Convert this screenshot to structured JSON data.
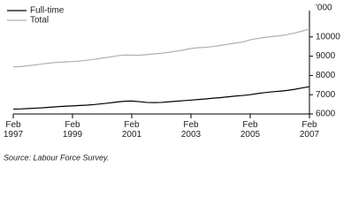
{
  "chart_data": {
    "type": "line",
    "unit_label": "'000",
    "source": "Source: Labour Force Survey.",
    "x": [
      "1997-02",
      "1997-05",
      "1997-08",
      "1997-11",
      "1998-02",
      "1998-05",
      "1998-08",
      "1998-11",
      "1999-02",
      "1999-05",
      "1999-08",
      "1999-11",
      "2000-02",
      "2000-05",
      "2000-08",
      "2000-11",
      "2001-02",
      "2001-05",
      "2001-08",
      "2001-11",
      "2002-02",
      "2002-05",
      "2002-08",
      "2002-11",
      "2003-02",
      "2003-05",
      "2003-08",
      "2003-11",
      "2004-02",
      "2004-05",
      "2004-08",
      "2004-11",
      "2005-02",
      "2005-05",
      "2005-08",
      "2005-11",
      "2006-02",
      "2006-05",
      "2006-08",
      "2006-11",
      "2007-02"
    ],
    "series": [
      {
        "name": "Full-time",
        "color": "#000000",
        "values": [
          6250,
          6260,
          6280,
          6300,
          6320,
          6350,
          6380,
          6400,
          6420,
          6440,
          6460,
          6490,
          6530,
          6570,
          6620,
          6660,
          6670,
          6640,
          6600,
          6590,
          6600,
          6630,
          6660,
          6690,
          6720,
          6750,
          6780,
          6820,
          6850,
          6890,
          6930,
          6960,
          7000,
          7060,
          7110,
          7150,
          7180,
          7220,
          7280,
          7350,
          7420
        ]
      },
      {
        "name": "Total",
        "color": "#b0b0b0",
        "values": [
          8450,
          8460,
          8500,
          8550,
          8600,
          8650,
          8680,
          8700,
          8720,
          8750,
          8790,
          8840,
          8900,
          8950,
          9020,
          9060,
          9050,
          9050,
          9080,
          9120,
          9150,
          9200,
          9260,
          9320,
          9400,
          9440,
          9460,
          9500,
          9560,
          9620,
          9680,
          9740,
          9850,
          9920,
          9980,
          10020,
          10060,
          10120,
          10200,
          10300,
          10420
        ]
      }
    ],
    "xticks": [
      {
        "value": "1997-02",
        "label": "Feb 1997"
      },
      {
        "value": "1999-02",
        "label": "Feb 1999"
      },
      {
        "value": "2001-02",
        "label": "Feb 2001"
      },
      {
        "value": "2003-02",
        "label": "Feb 2003"
      },
      {
        "value": "2005-02",
        "label": "Feb 2005"
      },
      {
        "value": "2007-02",
        "label": "Feb 2007"
      }
    ],
    "ylim": [
      6000,
      11000
    ],
    "yticks": [
      6000,
      7000,
      8000,
      9000,
      10000
    ],
    "legend": "top-left"
  }
}
